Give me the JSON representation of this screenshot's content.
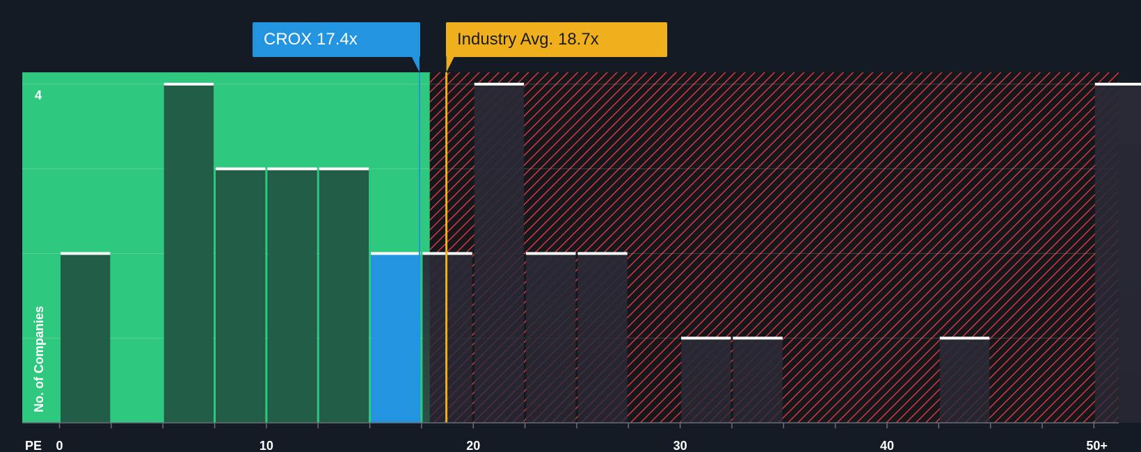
{
  "chart_data": {
    "type": "bar",
    "subtype": "histogram",
    "xlabel": "PE",
    "ylabel": "No. of Companies",
    "x_ticks": [
      0,
      10,
      20,
      30,
      40,
      "50+"
    ],
    "x_tick_labels": [
      "0",
      "10",
      "20",
      "30",
      "40",
      "50+"
    ],
    "y_tick_labels": [
      "4"
    ],
    "ylim": [
      0,
      4
    ],
    "xlim": [
      -1.8,
      51.2
    ],
    "bin_width": 2.5,
    "bins": [
      {
        "start": 0,
        "count": 2
      },
      {
        "start": 5,
        "count": 4
      },
      {
        "start": 7.5,
        "count": 3
      },
      {
        "start": 10,
        "count": 3
      },
      {
        "start": 12.5,
        "count": 3
      },
      {
        "start": 15,
        "count": 2,
        "highlight": "company"
      },
      {
        "start": 17.5,
        "count": 2
      },
      {
        "start": 20,
        "count": 4
      },
      {
        "start": 22.5,
        "count": 2
      },
      {
        "start": 25,
        "count": 2
      },
      {
        "start": 30,
        "count": 1
      },
      {
        "start": 32.5,
        "count": 1
      },
      {
        "start": 42.5,
        "count": 1
      },
      {
        "start": 50,
        "count": 4
      }
    ],
    "company": {
      "ticker": "CROX",
      "value": 17.4,
      "label": "CROX 17.4x"
    },
    "industry": {
      "value": 18.7,
      "label": "Industry Avg. 18.7x"
    },
    "undervalued_upto": 17.9,
    "grid": true
  },
  "colors": {
    "background": "#151b24",
    "undervalued_zone": "#2ec97e",
    "overvalued_hatch": "#d43a3e",
    "bar_in_green": "#1e4a3d",
    "bar_in_red": "#2a2a36",
    "company_bar": "#2394e0",
    "company_accent": "#2394e0",
    "industry_accent": "#f0b01e",
    "bar_cap": "#ffffff"
  }
}
